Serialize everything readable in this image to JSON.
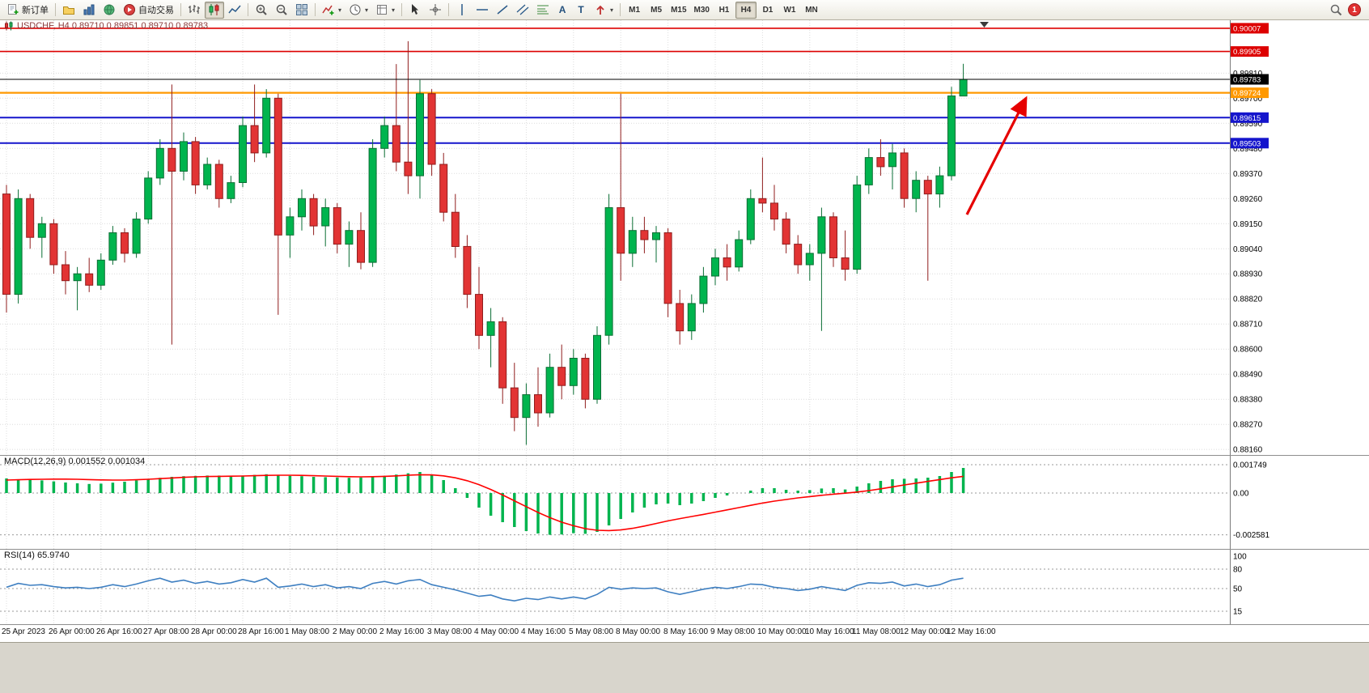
{
  "toolbar": {
    "new_order_label": "新订单",
    "auto_trading_label": "自动交易",
    "timeframes": [
      "M1",
      "M5",
      "M15",
      "M30",
      "H1",
      "H4",
      "D1",
      "W1",
      "MN"
    ],
    "active_timeframe": "H4",
    "notification_count": "1",
    "icon_glyphs": {
      "text_tool": "A",
      "label_tool": "T",
      "dropdown": "▾"
    }
  },
  "chart_data": [
    {
      "type": "candlestick",
      "symbol": "USDCHF",
      "timeframe": "H4",
      "title": "USDCHF, H4  0.89710 0.89851 0.89710 0.89783",
      "ohlc": [
        [
          0.8928,
          0.8932,
          0.8876,
          0.8884
        ],
        [
          0.8884,
          0.893,
          0.888,
          0.8926
        ],
        [
          0.8926,
          0.8928,
          0.8904,
          0.8909
        ],
        [
          0.8909,
          0.8918,
          0.89,
          0.8915
        ],
        [
          0.8915,
          0.8917,
          0.8893,
          0.8897
        ],
        [
          0.8897,
          0.8903,
          0.8884,
          0.889
        ],
        [
          0.889,
          0.8896,
          0.8877,
          0.8893
        ],
        [
          0.8893,
          0.89,
          0.8885,
          0.8888
        ],
        [
          0.8888,
          0.8902,
          0.8886,
          0.8899
        ],
        [
          0.8899,
          0.8914,
          0.8897,
          0.8911
        ],
        [
          0.8911,
          0.8913,
          0.8898,
          0.8902
        ],
        [
          0.8902,
          0.892,
          0.89,
          0.8917
        ],
        [
          0.8917,
          0.8938,
          0.8915,
          0.8935
        ],
        [
          0.8935,
          0.8952,
          0.8932,
          0.8948
        ],
        [
          0.8948,
          0.8976,
          0.8862,
          0.8938
        ],
        [
          0.8938,
          0.8955,
          0.8934,
          0.8951
        ],
        [
          0.8951,
          0.8953,
          0.8928,
          0.8932
        ],
        [
          0.8932,
          0.8944,
          0.893,
          0.8941
        ],
        [
          0.8941,
          0.8943,
          0.8922,
          0.8926
        ],
        [
          0.8926,
          0.8936,
          0.8924,
          0.8933
        ],
        [
          0.8933,
          0.8962,
          0.8931,
          0.8958
        ],
        [
          0.8958,
          0.8976,
          0.8942,
          0.8946
        ],
        [
          0.8946,
          0.8974,
          0.8944,
          0.897
        ],
        [
          0.897,
          0.8972,
          0.8875,
          0.891
        ],
        [
          0.891,
          0.8922,
          0.89,
          0.8918
        ],
        [
          0.8918,
          0.893,
          0.8912,
          0.8926
        ],
        [
          0.8926,
          0.8928,
          0.891,
          0.8914
        ],
        [
          0.8914,
          0.8926,
          0.8905,
          0.8922
        ],
        [
          0.8922,
          0.8924,
          0.8902,
          0.8906
        ],
        [
          0.8906,
          0.8916,
          0.8896,
          0.8912
        ],
        [
          0.8912,
          0.892,
          0.8895,
          0.8898
        ],
        [
          0.8898,
          0.8952,
          0.8896,
          0.8948
        ],
        [
          0.8948,
          0.8962,
          0.8944,
          0.8958
        ],
        [
          0.8958,
          0.8985,
          0.8938,
          0.8942
        ],
        [
          0.8942,
          0.8995,
          0.8928,
          0.8936
        ],
        [
          0.8936,
          0.8978,
          0.8926,
          0.8972
        ],
        [
          0.8972,
          0.8974,
          0.8936,
          0.8941
        ],
        [
          0.8941,
          0.8946,
          0.8916,
          0.892
        ],
        [
          0.892,
          0.8928,
          0.89,
          0.8905
        ],
        [
          0.8905,
          0.891,
          0.8878,
          0.8884
        ],
        [
          0.8884,
          0.8896,
          0.886,
          0.8866
        ],
        [
          0.8866,
          0.8878,
          0.8852,
          0.8872
        ],
        [
          0.8872,
          0.8874,
          0.8836,
          0.8843
        ],
        [
          0.8843,
          0.8854,
          0.8824,
          0.883
        ],
        [
          0.883,
          0.8845,
          0.8818,
          0.884
        ],
        [
          0.884,
          0.8852,
          0.8826,
          0.8832
        ],
        [
          0.8832,
          0.8858,
          0.883,
          0.8852
        ],
        [
          0.8852,
          0.8862,
          0.8838,
          0.8844
        ],
        [
          0.8844,
          0.886,
          0.884,
          0.8856
        ],
        [
          0.8856,
          0.8858,
          0.8834,
          0.8838
        ],
        [
          0.8838,
          0.887,
          0.8836,
          0.8866
        ],
        [
          0.8866,
          0.8928,
          0.8862,
          0.8922
        ],
        [
          0.8922,
          0.8972,
          0.889,
          0.8902
        ],
        [
          0.8902,
          0.8918,
          0.8896,
          0.8912
        ],
        [
          0.8912,
          0.8918,
          0.8902,
          0.8908
        ],
        [
          0.8908,
          0.8914,
          0.8898,
          0.8911
        ],
        [
          0.8911,
          0.8913,
          0.8874,
          0.888
        ],
        [
          0.888,
          0.8886,
          0.8862,
          0.8868
        ],
        [
          0.8868,
          0.8884,
          0.8864,
          0.888
        ],
        [
          0.888,
          0.8896,
          0.8876,
          0.8892
        ],
        [
          0.8892,
          0.8904,
          0.8888,
          0.89
        ],
        [
          0.89,
          0.8906,
          0.889,
          0.8896
        ],
        [
          0.8896,
          0.8912,
          0.8894,
          0.8908
        ],
        [
          0.8908,
          0.893,
          0.8906,
          0.8926
        ],
        [
          0.8926,
          0.8944,
          0.892,
          0.8924
        ],
        [
          0.8924,
          0.8932,
          0.8912,
          0.8917
        ],
        [
          0.8917,
          0.892,
          0.8902,
          0.8906
        ],
        [
          0.8906,
          0.891,
          0.8893,
          0.8897
        ],
        [
          0.8897,
          0.8906,
          0.889,
          0.8902
        ],
        [
          0.8902,
          0.8922,
          0.8868,
          0.8918
        ],
        [
          0.8918,
          0.892,
          0.8896,
          0.89
        ],
        [
          0.89,
          0.8912,
          0.889,
          0.8895
        ],
        [
          0.8895,
          0.8936,
          0.8893,
          0.8932
        ],
        [
          0.8932,
          0.8948,
          0.8928,
          0.8944
        ],
        [
          0.8944,
          0.8952,
          0.8936,
          0.894
        ],
        [
          0.894,
          0.895,
          0.893,
          0.8946
        ],
        [
          0.8946,
          0.8948,
          0.8922,
          0.8926
        ],
        [
          0.8926,
          0.8938,
          0.892,
          0.8934
        ],
        [
          0.8934,
          0.8936,
          0.889,
          0.8928
        ],
        [
          0.8928,
          0.894,
          0.8922,
          0.8936
        ],
        [
          0.8936,
          0.8975,
          0.8934,
          0.8971
        ],
        [
          0.8971,
          0.89851,
          0.8971,
          0.89783
        ]
      ],
      "y_ticks": [
        0.8981,
        0.897,
        0.8959,
        0.8948,
        0.8937,
        0.8926,
        0.8915,
        0.8904,
        0.8893,
        0.8882,
        0.8871,
        0.886,
        0.8849,
        0.8838,
        0.8827,
        0.8816
      ],
      "x_labels": [
        {
          "label": "25 Apr 2023",
          "bar": 0
        },
        {
          "label": "26 Apr 00:00",
          "bar": 4
        },
        {
          "label": "26 Apr 16:00",
          "bar": 8
        },
        {
          "label": "27 Apr 08:00",
          "bar": 12
        },
        {
          "label": "28 Apr 00:00",
          "bar": 16
        },
        {
          "label": "28 Apr 16:00",
          "bar": 20
        },
        {
          "label": "1 May 08:00",
          "bar": 24
        },
        {
          "label": "2 May 00:00",
          "bar": 28
        },
        {
          "label": "2 May 16:00",
          "bar": 32
        },
        {
          "label": "3 May 08:00",
          "bar": 36
        },
        {
          "label": "4 May 00:00",
          "bar": 40
        },
        {
          "label": "4 May 16:00",
          "bar": 44
        },
        {
          "label": "5 May 08:00",
          "bar": 48
        },
        {
          "label": "8 May 00:00",
          "bar": 52
        },
        {
          "label": "8 May 16:00",
          "bar": 56
        },
        {
          "label": "9 May 08:00",
          "bar": 60
        },
        {
          "label": "10 May 00:00",
          "bar": 64
        },
        {
          "label": "10 May 16:00",
          "bar": 68
        },
        {
          "label": "11 May 08:00",
          "bar": 72
        },
        {
          "label": "12 May 00:00",
          "bar": 76
        },
        {
          "label": "12 May 16:00",
          "bar": 80
        }
      ],
      "levels": [
        {
          "price": 0.90007,
          "label": "0.90007",
          "color": "#dd0000",
          "width": 1.6
        },
        {
          "price": 0.89905,
          "label": "0.89905",
          "color": "#dd0000",
          "width": 1.6
        },
        {
          "price": 0.89724,
          "label": "0.89724",
          "color": "#ff9900",
          "width": 2.2
        },
        {
          "price": 0.89615,
          "label": "0.89615",
          "color": "#1515cc",
          "width": 2
        },
        {
          "price": 0.89503,
          "label": "0.89503",
          "color": "#1515cc",
          "width": 2
        }
      ],
      "current_price": {
        "price": 0.89783,
        "label": "0.89783",
        "color": "#000000"
      },
      "annotations": [
        {
          "type": "trend-arrow",
          "from_bar": 81.3,
          "from_price": 0.8919,
          "to_bar": 86.3,
          "to_price": 0.897,
          "color": "#e60000"
        }
      ],
      "colors": {
        "up_fill": "#00b44e",
        "up_stroke": "#0a6e34",
        "down_fill": "#e23434",
        "down_stroke": "#901d1d"
      }
    },
    {
      "type": "bar",
      "name": "MACD(12,26,9)",
      "label": "MACD(12,26,9) 0.001552 0.001034",
      "values": [
        0.0009,
        0.00085,
        0.00082,
        0.00078,
        0.00072,
        0.00065,
        0.0006,
        0.00056,
        0.00058,
        0.00064,
        0.0007,
        0.00078,
        0.00086,
        0.00094,
        0.001,
        0.00104,
        0.00106,
        0.00108,
        0.00108,
        0.00106,
        0.00108,
        0.00112,
        0.00116,
        0.00112,
        0.00106,
        0.00104,
        0.001,
        0.00098,
        0.00096,
        0.00094,
        0.00096,
        0.001,
        0.00106,
        0.00114,
        0.00122,
        0.0013,
        0.00112,
        0.0008,
        0.0003,
        -0.0003,
        -0.0009,
        -0.0014,
        -0.0018,
        -0.0021,
        -0.00235,
        -0.0025,
        -0.00258,
        -0.00256,
        -0.00248,
        -0.00252,
        -0.0024,
        -0.002,
        -0.0016,
        -0.0012,
        -0.0009,
        -0.0007,
        -0.00065,
        -0.00075,
        -0.00065,
        -0.0005,
        -0.0003,
        -0.00015,
        0,
        0.00015,
        0.0003,
        0.0003,
        0.0002,
        0.00015,
        0.00018,
        0.00028,
        0.0003,
        0.00022,
        0.0004,
        0.0006,
        0.00075,
        0.00085,
        0.00088,
        0.0009,
        0.00095,
        0.00105,
        0.0013,
        0.00155
      ],
      "signal": [
        0.0008,
        0.00082,
        0.00084,
        0.00085,
        0.00086,
        0.00086,
        0.00085,
        0.00083,
        0.00081,
        0.0008,
        0.0008,
        0.00082,
        0.00085,
        0.00089,
        0.00093,
        0.00097,
        0.001,
        0.00102,
        0.00103,
        0.00104,
        0.00105,
        0.00107,
        0.00109,
        0.0011,
        0.0011,
        0.00109,
        0.00107,
        0.00105,
        0.00103,
        0.00101,
        0.001,
        0.00101,
        0.00103,
        0.00106,
        0.0011,
        0.00113,
        0.00112,
        0.00106,
        0.00094,
        0.00076,
        0.00052,
        0.00022,
        -0.00012,
        -0.00048,
        -0.00084,
        -0.0012,
        -0.00152,
        -0.0018,
        -0.00202,
        -0.0022,
        -0.0023,
        -0.00232,
        -0.00228,
        -0.00218,
        -0.00204,
        -0.00188,
        -0.00172,
        -0.00158,
        -0.00145,
        -0.00132,
        -0.00118,
        -0.00104,
        -0.0009,
        -0.00076,
        -0.00062,
        -0.0005,
        -0.0004,
        -0.0003,
        -0.00022,
        -0.00014,
        -7e-05,
        -1e-05,
        6e-05,
        0.00015,
        0.00026,
        0.00038,
        0.0005,
        0.00061,
        0.00072,
        0.00083,
        0.00094,
        0.00103
      ],
      "y_ticks": [
        {
          "v": 0.001749,
          "label": "0.001749"
        },
        {
          "v": 0,
          "label": "0.00"
        },
        {
          "v": -0.002581,
          "label": "-0.002581"
        }
      ],
      "colors": {
        "histogram": "#00b44e",
        "signal": "#ff0000"
      }
    },
    {
      "type": "line",
      "name": "RSI(14)",
      "label": "RSI(14) 65.9740",
      "range": [
        0,
        100
      ],
      "values": [
        52,
        58,
        55,
        56,
        53,
        51,
        52,
        50,
        52,
        56,
        53,
        57,
        62,
        66,
        60,
        63,
        58,
        61,
        57,
        59,
        64,
        60,
        66,
        52,
        54,
        57,
        53,
        56,
        51,
        53,
        50,
        58,
        61,
        57,
        62,
        64,
        56,
        52,
        48,
        43,
        38,
        40,
        34,
        31,
        35,
        33,
        37,
        34,
        37,
        34,
        41,
        52,
        49,
        51,
        50,
        51,
        45,
        41,
        45,
        49,
        52,
        50,
        53,
        57,
        56,
        52,
        50,
        47,
        49,
        53,
        50,
        47,
        55,
        59,
        58,
        60,
        54,
        57,
        53,
        56,
        63,
        66
      ],
      "levels": [
        80,
        50,
        15
      ],
      "y_ticks": [
        {
          "v": 100,
          "label": "100"
        },
        {
          "v": 80,
          "label": "80"
        },
        {
          "v": 50,
          "label": "50"
        },
        {
          "v": 15,
          "label": "15"
        }
      ],
      "colors": {
        "line": "#3e7fc1"
      }
    }
  ]
}
